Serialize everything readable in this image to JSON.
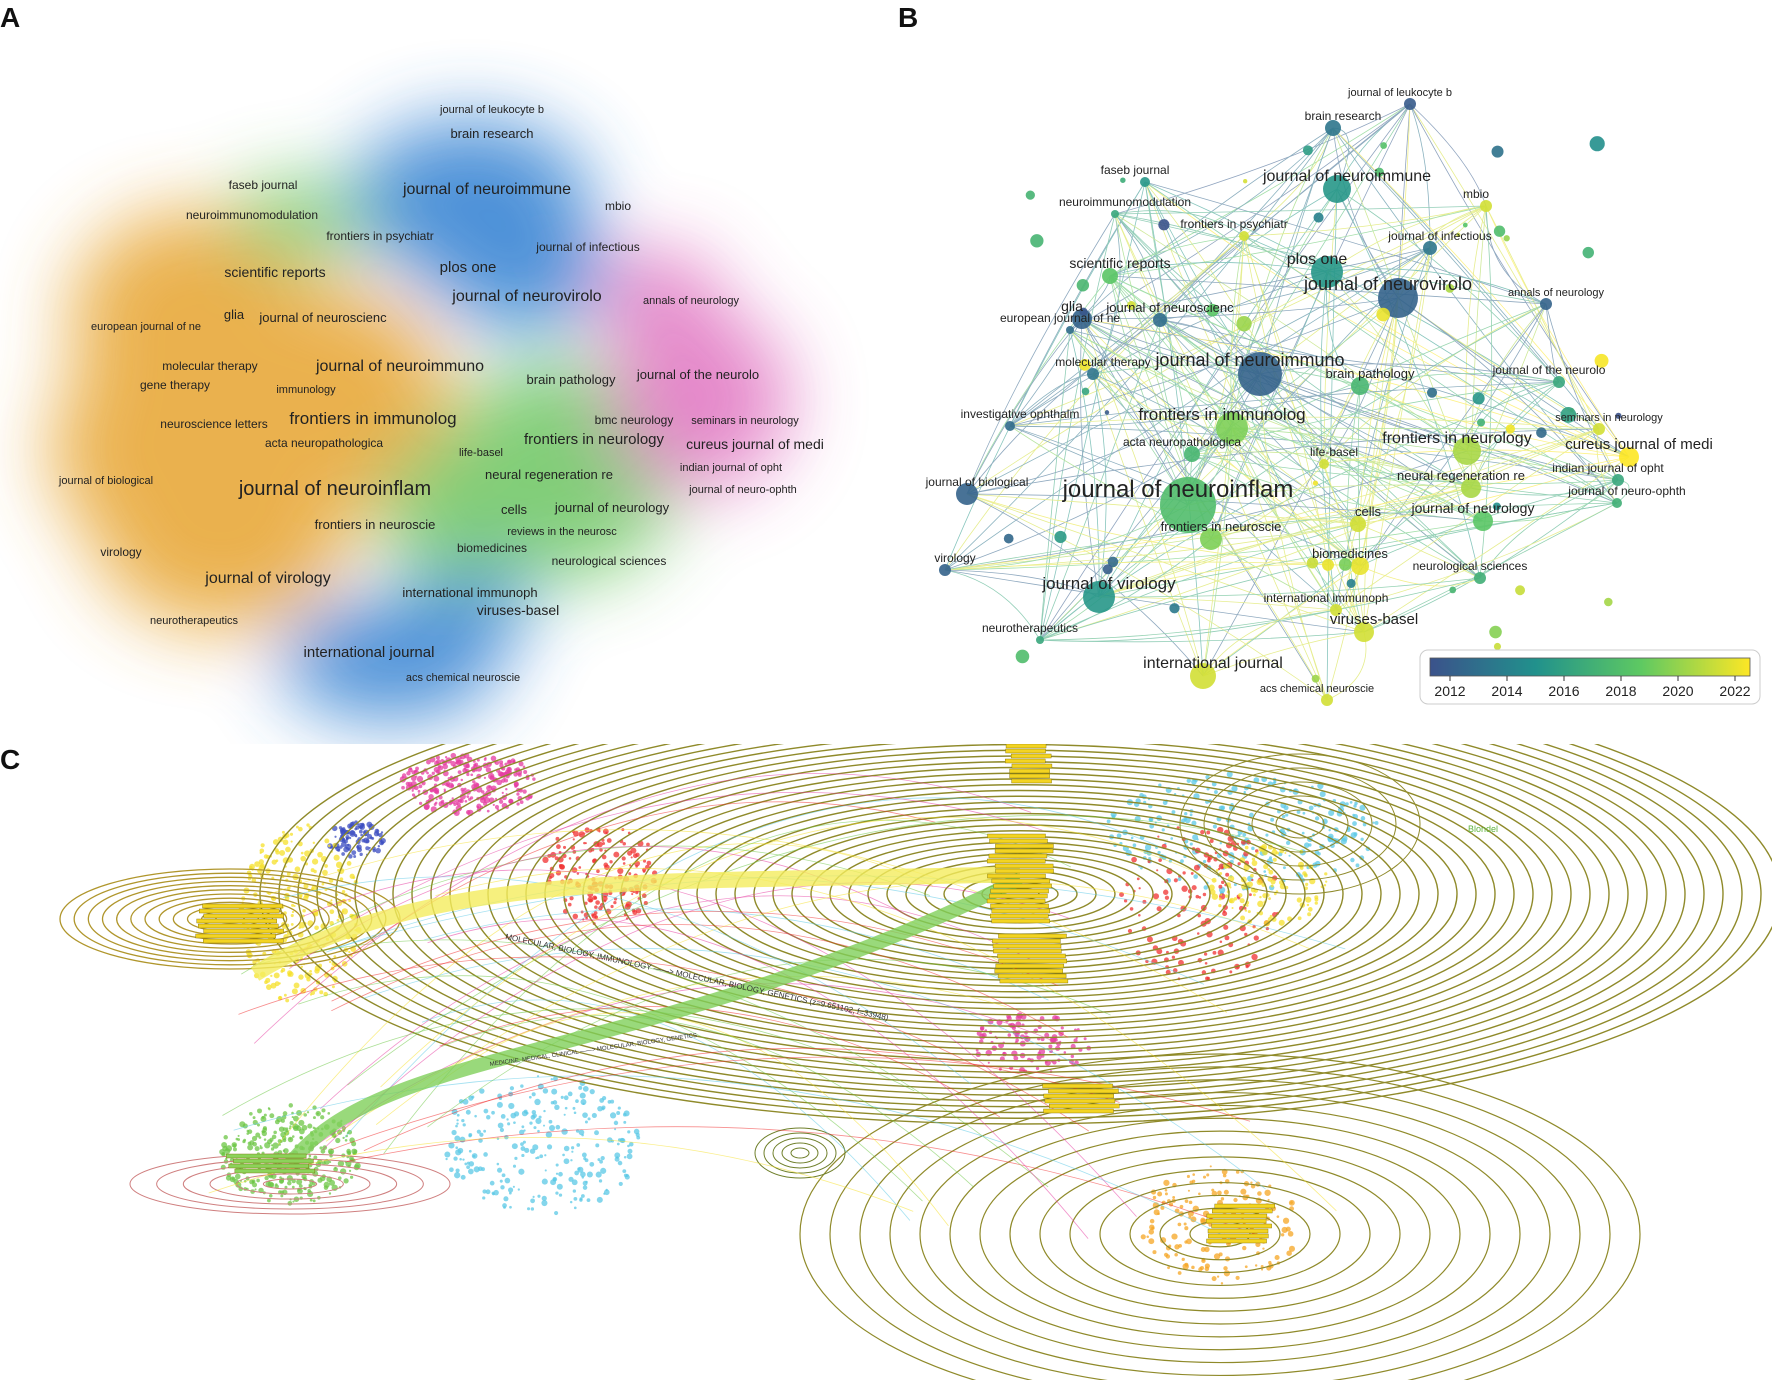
{
  "panels": {
    "a": "A",
    "b": "B",
    "c": "C"
  },
  "panel_a": {
    "labels": [
      {
        "text": "journal of leukocyte b",
        "size": 11,
        "cluster": "blue"
      },
      {
        "text": "brain research",
        "size": 13,
        "cluster": "blue"
      },
      {
        "text": "faseb journal",
        "size": 12,
        "cluster": "green"
      },
      {
        "text": "journal of neuroimmune",
        "size": 16,
        "cluster": "blue"
      },
      {
        "text": "mbio",
        "size": 12,
        "cluster": "blue"
      },
      {
        "text": "neuroimmunomodulation",
        "size": 12,
        "cluster": "green"
      },
      {
        "text": "frontiers in psychiatr",
        "size": 12,
        "cluster": "green"
      },
      {
        "text": "journal of infectious",
        "size": 12,
        "cluster": "blue"
      },
      {
        "text": "plos one",
        "size": 15,
        "cluster": "blue"
      },
      {
        "text": "scientific reports",
        "size": 14,
        "cluster": "orange"
      },
      {
        "text": "journal of neurovirolo",
        "size": 16,
        "cluster": "blue"
      },
      {
        "text": "annals of neurology",
        "size": 11,
        "cluster": "pink"
      },
      {
        "text": "glia",
        "size": 13,
        "cluster": "orange"
      },
      {
        "text": "journal of neuroscienc",
        "size": 13,
        "cluster": "orange"
      },
      {
        "text": "european journal of ne",
        "size": 11,
        "cluster": "orange"
      },
      {
        "text": "molecular therapy",
        "size": 12,
        "cluster": "orange"
      },
      {
        "text": "journal of neuroimmuno",
        "size": 16,
        "cluster": "orange"
      },
      {
        "text": "gene therapy",
        "size": 12,
        "cluster": "orange"
      },
      {
        "text": "immunology",
        "size": 11,
        "cluster": "orange"
      },
      {
        "text": "brain pathology",
        "size": 13,
        "cluster": "green"
      },
      {
        "text": "journal of the neurolo",
        "size": 13,
        "cluster": "pink"
      },
      {
        "text": "neuroscience letters",
        "size": 12,
        "cluster": "orange"
      },
      {
        "text": "frontiers in immunolog",
        "size": 17,
        "cluster": "orange"
      },
      {
        "text": "bmc neurology",
        "size": 12,
        "cluster": "pink"
      },
      {
        "text": "seminars in neurology",
        "size": 11,
        "cluster": "pink"
      },
      {
        "text": "acta neuropathologica",
        "size": 12,
        "cluster": "orange"
      },
      {
        "text": "frontiers in neurology",
        "size": 15,
        "cluster": "pink"
      },
      {
        "text": "cureus journal of medi",
        "size": 14,
        "cluster": "pink"
      },
      {
        "text": "life-basel",
        "size": 11,
        "cluster": "green"
      },
      {
        "text": "indian journal of opht",
        "size": 11,
        "cluster": "pink"
      },
      {
        "text": "neural regeneration re",
        "size": 13,
        "cluster": "green"
      },
      {
        "text": "journal of biological",
        "size": 11,
        "cluster": "orange"
      },
      {
        "text": "journal of neuro-ophth",
        "size": 11,
        "cluster": "pink"
      },
      {
        "text": "journal of neuroinflam",
        "size": 20,
        "cluster": "orange"
      },
      {
        "text": "cells",
        "size": 13,
        "cluster": "green"
      },
      {
        "text": "journal of neurology",
        "size": 13,
        "cluster": "green"
      },
      {
        "text": "frontiers in neuroscie",
        "size": 13,
        "cluster": "orange"
      },
      {
        "text": "reviews in the neurosc",
        "size": 11,
        "cluster": "green"
      },
      {
        "text": "biomedicines",
        "size": 12,
        "cluster": "green"
      },
      {
        "text": "virology",
        "size": 12,
        "cluster": "orange"
      },
      {
        "text": "neurological sciences",
        "size": 12,
        "cluster": "green"
      },
      {
        "text": "journal of virology",
        "size": 16,
        "cluster": "orange"
      },
      {
        "text": "international immunoph",
        "size": 13,
        "cluster": "green"
      },
      {
        "text": "viruses-basel",
        "size": 14,
        "cluster": "green"
      },
      {
        "text": "neurotherapeutics",
        "size": 11,
        "cluster": "orange"
      },
      {
        "text": "international journal",
        "size": 15,
        "cluster": "blue"
      },
      {
        "text": "acs chemical neuroscie",
        "size": 11,
        "cluster": "blue"
      }
    ]
  },
  "panel_b": {
    "nodes": [
      {
        "text": "journal of leukocyte b",
        "year": 2011.5
      },
      {
        "text": "brain research",
        "year": 2013
      },
      {
        "text": "faseb journal",
        "year": 2015
      },
      {
        "text": "journal of neuroimmune",
        "year": 2015
      },
      {
        "text": "mbio",
        "year": 2021
      },
      {
        "text": "neuroimmunomodulation",
        "year": 2016
      },
      {
        "text": "frontiers in psychiatr",
        "year": 2021
      },
      {
        "text": "journal of infectious",
        "year": 2013
      },
      {
        "text": "plos one",
        "year": 2015
      },
      {
        "text": "scientific reports",
        "year": 2018
      },
      {
        "text": "journal of neurovirolo",
        "year": 2012
      },
      {
        "text": "annals of neurology",
        "year": 2012
      },
      {
        "text": "glia",
        "year": 2012
      },
      {
        "text": "journal of neuroscienc",
        "year": 2012.5
      },
      {
        "text": "european journal of ne",
        "year": 2012.5
      },
      {
        "text": "molecular therapy",
        "year": 2013
      },
      {
        "text": "journal of neuroimmuno",
        "year": 2012
      },
      {
        "text": "brain pathology",
        "year": 2017
      },
      {
        "text": "journal of the neurolo",
        "year": 2016
      },
      {
        "text": "investigative ophthalm",
        "year": 2012.5
      },
      {
        "text": "frontiers in immunolog",
        "year": 2019
      },
      {
        "text": "seminars in neurology",
        "year": 2021
      },
      {
        "text": "frontiers in neurology",
        "year": 2020
      },
      {
        "text": "cureus journal of medi",
        "year": 2022
      },
      {
        "text": "acta neuropathologica",
        "year": 2017
      },
      {
        "text": "life-basel",
        "year": 2021
      },
      {
        "text": "indian journal of opht",
        "year": 2016
      },
      {
        "text": "journal of biological",
        "year": 2012
      },
      {
        "text": "neural regeneration re",
        "year": 2020
      },
      {
        "text": "journal of neuro-ophth",
        "year": 2016.5
      },
      {
        "text": "journal of neuroinflam",
        "year": 2017.5
      },
      {
        "text": "cells",
        "year": 2021
      },
      {
        "text": "journal of neurology",
        "year": 2018
      },
      {
        "text": "frontiers in neuroscie",
        "year": 2019
      },
      {
        "text": "biomedicines",
        "year": 2021.5
      },
      {
        "text": "virology",
        "year": 2012
      },
      {
        "text": "neurological sciences",
        "year": 2016.5
      },
      {
        "text": "journal of virology",
        "year": 2015
      },
      {
        "text": "international immunoph",
        "year": 2021
      },
      {
        "text": "viruses-basel",
        "year": 2021
      },
      {
        "text": "neurotherapeutics",
        "year": 2016
      },
      {
        "text": "international journal",
        "year": 2021
      },
      {
        "text": "acs chemical neuroscie",
        "year": 2021
      }
    ],
    "legend": {
      "ticks": [
        "2012",
        "2014",
        "2016",
        "2018",
        "2020",
        "2022"
      ],
      "colors": [
        "#3b528b",
        "#21918c",
        "#5ec962",
        "#fde725"
      ]
    }
  },
  "panel_c": {
    "title_text": "Blondel",
    "arc_label_1": "MOLECULAR, BIOLOGY, IMMUNOLOGY ——> MOLECULAR, BIOLOGY, GENETICS (z=9.651102, f=33948)",
    "arc_label_2": "MEDICINE, MEDICAL, CLINICAL ——> MOLECULAR, BIOLOGY, GENETICS",
    "cluster_colors": [
      "#e63ba0",
      "#3b4cc0",
      "#f03030",
      "#f5e02a",
      "#6cc644",
      "#5bc8e6",
      "#9e8f2c",
      "#f5a623"
    ]
  }
}
